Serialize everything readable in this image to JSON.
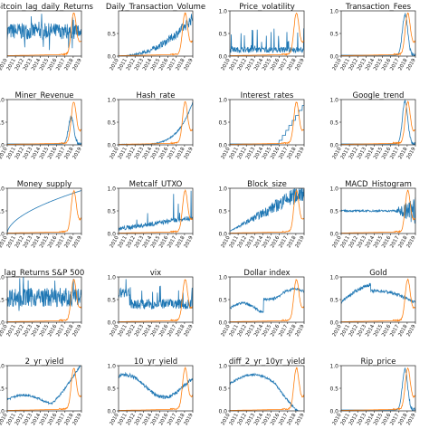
{
  "chart_data": {
    "type": "line",
    "x_tick_labels": [
      "2010",
      "2011",
      "2012",
      "2013",
      "2014",
      "2015",
      "2016",
      "2017",
      "2018",
      "2019"
    ],
    "series_colors": {
      "feature": "#1f77b4",
      "price": "#ff7f0e"
    },
    "panels": [
      {
        "title": "Bitcoin_lag_daily_Returns",
        "ylim": [
          0,
          1
        ],
        "yticks": [],
        "pattern": "noise",
        "level": 0.55,
        "amp": 0.3
      },
      {
        "title": "Daily_Transaction_Volume",
        "ylim": [
          0,
          1
        ],
        "yticks": [
          "0.5",
          "0.0"
        ],
        "pattern": "rise",
        "level": 0.0,
        "amp": 0.85
      },
      {
        "title": "Price_volatility",
        "ylim": [
          0,
          1
        ],
        "yticks": [
          "1.0",
          "0.5",
          "0.0"
        ],
        "pattern": "spiky",
        "level": 0.08,
        "amp": 0.55
      },
      {
        "title": "Transaction_Fees",
        "ylim": [
          0,
          1
        ],
        "yticks": [
          "1.0",
          "0.5",
          "0.0"
        ],
        "pattern": "late_spike",
        "level": 0.02,
        "amp": 0.9
      },
      {
        "title": "Miner_Revenue",
        "ylim": [
          0,
          1
        ],
        "yticks": [
          "1.0",
          "0.5",
          "0.0"
        ],
        "pattern": "late_spike",
        "level": 0.02,
        "amp": 0.6
      },
      {
        "title": "Hash_rate",
        "ylim": [
          0,
          1
        ],
        "yticks": [
          "1.0",
          "0.5",
          "0.0"
        ],
        "pattern": "exp",
        "level": 0.0,
        "amp": 0.95
      },
      {
        "title": "Interest_rates",
        "ylim": [
          0,
          1
        ],
        "yticks": [
          "1.0",
          "0.5",
          "0.0"
        ],
        "pattern": "steps",
        "level": 0.0,
        "amp": 0.95
      },
      {
        "title": "Google_trend",
        "ylim": [
          0,
          1
        ],
        "yticks": [
          "1.0",
          "0.5",
          "0.0"
        ],
        "pattern": "late_spike",
        "level": 0.02,
        "amp": 0.95
      },
      {
        "title": "Money_supply",
        "ylim": [
          0,
          1
        ],
        "yticks": [
          "1.0",
          "0.5",
          "0.0"
        ],
        "pattern": "log",
        "level": 0.0,
        "amp": 0.95
      },
      {
        "title": "Metcalf_UTXO",
        "ylim": [
          0,
          1
        ],
        "yticks": [
          "1.0",
          "0.5",
          "0.0"
        ],
        "pattern": "spikes",
        "level": 0.05,
        "amp": 0.7
      },
      {
        "title": "Block_size",
        "ylim": [
          0,
          1
        ],
        "yticks": [
          "1.0",
          "0.5",
          "0.0"
        ],
        "pattern": "noisy_rise",
        "level": 0.05,
        "amp": 0.9
      },
      {
        "title": "MACD_Histogram",
        "ylim": [
          0,
          1
        ],
        "yticks": [
          "1.0",
          "0.5",
          "0.0"
        ],
        "pattern": "macd",
        "level": 0.5,
        "amp": 0.3
      },
      {
        "title": "lag_Returns S&P 500",
        "ylim": [
          0,
          1
        ],
        "yticks": [
          "1.0",
          "0.5",
          "0.0"
        ],
        "pattern": "noise",
        "level": 0.55,
        "amp": 0.35
      },
      {
        "title": "vix",
        "ylim": [
          0,
          1
        ],
        "yticks": [
          "1.0",
          "0.5",
          "0.0"
        ],
        "pattern": "vix",
        "level": 0.3,
        "amp": 0.5
      },
      {
        "title": "Dollar index",
        "ylim": [
          0,
          1
        ],
        "yticks": [
          "1.0",
          "0.5",
          "0.0"
        ],
        "pattern": "dollar",
        "level": 0.3,
        "amp": 0.6
      },
      {
        "title": "Gold",
        "ylim": [
          0,
          1
        ],
        "yticks": [
          "1.0",
          "0.5",
          "0.0"
        ],
        "pattern": "gold",
        "level": 0.4,
        "amp": 0.5
      },
      {
        "title": "2_yr_yield",
        "ylim": [
          0,
          1
        ],
        "yticks": [
          "1.0",
          "0.5",
          "0.0"
        ],
        "pattern": "yield2",
        "level": 0.2,
        "amp": 0.6
      },
      {
        "title": "10_yr_yield",
        "ylim": [
          0,
          1
        ],
        "yticks": [
          "1.0",
          "0.5",
          "0.0"
        ],
        "pattern": "yield10",
        "level": 0.5,
        "amp": 0.45
      },
      {
        "title": "diff_2_yr_10yr_yield",
        "ylim": [
          0,
          1
        ],
        "yticks": [
          "1.0",
          "0.5",
          "0.0"
        ],
        "pattern": "diff",
        "level": 0.5,
        "amp": 0.4
      },
      {
        "title": "Rip_price",
        "ylim": [
          0,
          1
        ],
        "yticks": [
          "1.0",
          "0.5",
          "0.0"
        ],
        "pattern": "late_spike",
        "level": 0.02,
        "amp": 0.9
      }
    ],
    "price_series": {
      "name": "",
      "shape": "late_spike",
      "peak_year": 2017.95,
      "peak": 0.95,
      "end": 0.35
    }
  }
}
